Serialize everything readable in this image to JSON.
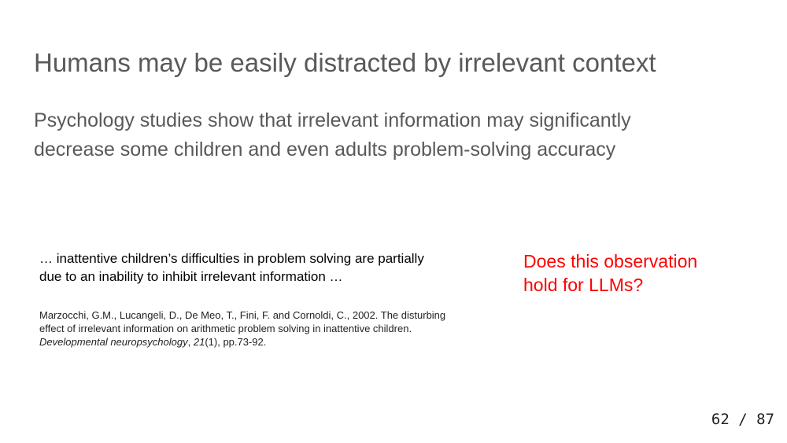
{
  "slide": {
    "title": "Humans may be easily distracted by irrelevant context",
    "subtitle_lines": [
      "Psychology studies show that irrelevant information may significantly",
      "decrease some children and even adults problem-solving accuracy"
    ],
    "quote_lines": [
      "… inattentive children’s difficulties in problem solving are partially",
      "due to an inability to inhibit irrelevant information …"
    ],
    "citation": {
      "line1": "Marzocchi, G.M., Lucangeli, D., De Meo, T., Fini, F. and Cornoldi, C., 2002. The disturbing",
      "line2": "effect of irrelevant information on arithmetic problem solving in inattentive children.",
      "journal": "Developmental neuropsychology",
      "sep1": ", ",
      "volume": "21",
      "rest": "(1), pp.73-92."
    },
    "question_lines": [
      "Does this observation",
      "hold for LLMs?"
    ],
    "page_number": "62 / 87"
  },
  "colors": {
    "heading_gray": "#595959",
    "question_red": "#ff0000",
    "body_black": "#000000"
  }
}
